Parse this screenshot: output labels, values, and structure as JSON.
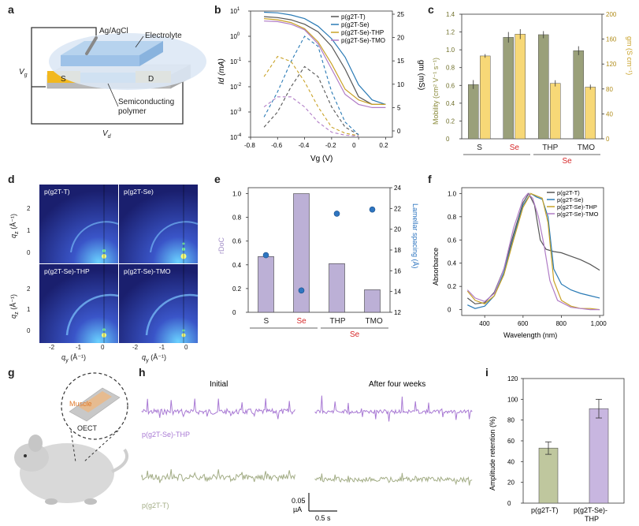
{
  "panel_labels": [
    "a",
    "b",
    "c",
    "d",
    "e",
    "f",
    "g",
    "h",
    "i"
  ],
  "panel_a": {
    "electrode": "Ag/AgCl",
    "electrolyte": "Electrolyte",
    "source": "S",
    "drain": "D",
    "semiconductor_line1": "Semiconducting",
    "semiconductor_line2": "polymer",
    "vg": "V",
    "vg_sub": "g",
    "vd": "V",
    "vd_sub": "d"
  },
  "chart_data": [
    {
      "id": "b",
      "type": "line",
      "xlabel": "Vg (V)",
      "ylabel_left": "Id (mA)",
      "ylabel_right": "gm (mS)",
      "x_ticks": [
        "-0.8",
        "-0.6",
        "-0.4",
        "-0.2",
        "0",
        "0.2"
      ],
      "y_left_ticks": [
        "10^-4",
        "10^-3",
        "10^-2",
        "10^-1",
        "10^0",
        "10^1"
      ],
      "y_right_ticks": [
        "0",
        "5",
        "10",
        "15",
        "20",
        "25"
      ],
      "xlim": [
        -0.8,
        0.25
      ],
      "legend": [
        "p(g2T-T)",
        "p(g2T-Se)",
        "p(g2T-Se)-THP",
        "p(g2T-Se)-TMO"
      ],
      "colors": [
        "#555555",
        "#2a7ab5",
        "#c9a227",
        "#b07cc6"
      ],
      "series_id": [
        {
          "name": "p(g2T-T)",
          "x": [
            -0.7,
            -0.6,
            -0.5,
            -0.4,
            -0.3,
            -0.2,
            -0.1,
            0.0,
            0.1,
            0.2
          ],
          "y": [
            6,
            5.5,
            4.5,
            3,
            1.5,
            0.4,
            0.05,
            0.004,
            0.002,
            0.002
          ]
        },
        {
          "name": "p(g2T-Se)",
          "x": [
            -0.7,
            -0.6,
            -0.5,
            -0.4,
            -0.3,
            -0.2,
            -0.1,
            0.0,
            0.1,
            0.2
          ],
          "y": [
            9,
            8.5,
            7,
            5,
            2.5,
            0.8,
            0.15,
            0.012,
            0.003,
            0.002
          ]
        },
        {
          "name": "p(g2T-Se)-THP",
          "x": [
            -0.7,
            -0.6,
            -0.5,
            -0.4,
            -0.3,
            -0.2,
            -0.1,
            0.0,
            0.1,
            0.2
          ],
          "y": [
            5,
            4.5,
            3.5,
            2,
            0.6,
            0.08,
            0.008,
            0.003,
            0.002,
            0.002
          ]
        },
        {
          "name": "p(g2T-Se)-TMO",
          "x": [
            -0.7,
            -0.6,
            -0.5,
            -0.4,
            -0.3,
            -0.2,
            -0.1,
            0.0,
            0.1,
            0.2
          ],
          "y": [
            4,
            3.8,
            3,
            1.8,
            0.5,
            0.05,
            0.005,
            0.002,
            0.0015,
            0.0015
          ]
        }
      ],
      "series_gm": [
        {
          "name": "p(g2T-T)",
          "x": [
            -0.7,
            -0.6,
            -0.5,
            -0.4,
            -0.3,
            -0.2,
            -0.1,
            0.0
          ],
          "y": [
            2,
            5,
            10,
            14,
            12,
            6,
            2,
            0.5
          ]
        },
        {
          "name": "p(g2T-Se)",
          "x": [
            -0.7,
            -0.6,
            -0.5,
            -0.4,
            -0.3,
            -0.2,
            -0.1,
            0.0
          ],
          "y": [
            4,
            9,
            15,
            20,
            18,
            9,
            3,
            0.5
          ]
        },
        {
          "name": "p(g2T-Se)-THP",
          "x": [
            -0.7,
            -0.6,
            -0.5,
            -0.4,
            -0.3,
            -0.2,
            -0.1,
            0.0
          ],
          "y": [
            12,
            16,
            15,
            11,
            6,
            2,
            0.8,
            0.3
          ]
        },
        {
          "name": "p(g2T-Se)-TMO",
          "x": [
            -0.7,
            -0.6,
            -0.5,
            -0.4,
            -0.3,
            -0.2,
            -0.1,
            0.0
          ],
          "y": [
            6,
            8,
            8,
            6,
            3,
            1,
            0.4,
            0.2
          ]
        }
      ]
    },
    {
      "id": "c",
      "type": "bar",
      "categories": [
        "S",
        "Se",
        "THP",
        "TMO"
      ],
      "category_colors": [
        "#222222",
        "#d62728",
        "#222222",
        "#222222"
      ],
      "group_label": "Se",
      "ylabel_left": "Mobility (cm² V⁻¹ s⁻¹)",
      "ylabel_right": "gm (S cm⁻¹)",
      "y_left_ticks": [
        "0",
        "0.2",
        "0.4",
        "0.6",
        "0.8",
        "1.0",
        "1.2",
        "1.4"
      ],
      "y_right_ticks": [
        "0",
        "40",
        "80",
        "120",
        "160",
        "200"
      ],
      "ylim_left": [
        0,
        1.4
      ],
      "ylim_right": [
        0,
        200
      ],
      "series": [
        {
          "name": "Mobility",
          "values": [
            0.61,
            1.14,
            1.17,
            0.99
          ],
          "errors": [
            0.05,
            0.06,
            0.04,
            0.05
          ],
          "color": "#9aa07a"
        },
        {
          "name": "gm",
          "values": [
            133,
            168,
            89,
            83
          ],
          "errors": [
            3,
            8,
            5,
            4
          ],
          "color": "#f7d877"
        }
      ]
    },
    {
      "id": "e",
      "type": "bar",
      "categories": [
        "S",
        "Se",
        "THP",
        "TMO"
      ],
      "category_colors": [
        "#222222",
        "#d62728",
        "#222222",
        "#222222"
      ],
      "group_label": "Se",
      "ylabel_left": "rDoC",
      "ylabel_right": "Lamellar spacing (Å)",
      "y_left_ticks": [
        "0",
        "0.2",
        "0.4",
        "0.6",
        "0.8",
        "1.0"
      ],
      "y_right_ticks": [
        "12",
        "14",
        "16",
        "18",
        "20",
        "22",
        "24"
      ],
      "ylim_left": [
        0,
        1.05
      ],
      "ylim_right": [
        12,
        24
      ],
      "series": [
        {
          "name": "rDoC",
          "values": [
            0.47,
            1.0,
            0.41,
            0.19
          ],
          "color": "#bcb0d6"
        },
        {
          "name": "Lamellar spacing",
          "values": [
            17.5,
            14.1,
            21.5,
            21.9
          ],
          "color": "#2e75c0"
        }
      ]
    },
    {
      "id": "f",
      "type": "line",
      "xlabel": "Wavelength (nm)",
      "ylabel": "Absorbance",
      "x_ticks": [
        "400",
        "600",
        "800",
        "1,000"
      ],
      "y_ticks": [
        "0",
        "0.2",
        "0.4",
        "0.6",
        "0.8",
        "1.0"
      ],
      "xlim": [
        280,
        1020
      ],
      "ylim": [
        -0.05,
        1.05
      ],
      "legend": [
        "p(g2T-T)",
        "p(g2T-Se)",
        "p(g2T-Se)-THP",
        "p(g2T-Se)-TMO"
      ],
      "colors": [
        "#555555",
        "#2a7ab5",
        "#c9a227",
        "#b07cc6"
      ],
      "series": [
        {
          "name": "p(g2T-T)",
          "x": [
            310,
            350,
            400,
            450,
            500,
            550,
            600,
            630,
            660,
            690,
            720,
            760,
            800,
            850,
            900,
            950,
            1000
          ],
          "y": [
            0.1,
            0.05,
            0.06,
            0.15,
            0.35,
            0.65,
            0.92,
            1.0,
            0.9,
            0.6,
            0.52,
            0.5,
            0.49,
            0.46,
            0.43,
            0.39,
            0.34
          ]
        },
        {
          "name": "p(g2T-Se)",
          "x": [
            310,
            350,
            400,
            450,
            500,
            550,
            600,
            640,
            670,
            700,
            730,
            760,
            800,
            850,
            900,
            950,
            1000
          ],
          "y": [
            0.04,
            0.01,
            0.03,
            0.12,
            0.32,
            0.62,
            0.9,
            1.0,
            0.97,
            0.95,
            0.8,
            0.35,
            0.22,
            0.17,
            0.14,
            0.12,
            0.1
          ]
        },
        {
          "name": "p(g2T-Se)-THP",
          "x": [
            310,
            350,
            400,
            450,
            500,
            550,
            600,
            640,
            670,
            700,
            730,
            760,
            800,
            850,
            900,
            950,
            1000
          ],
          "y": [
            0.16,
            0.08,
            0.05,
            0.12,
            0.3,
            0.6,
            0.88,
            1.0,
            0.98,
            0.96,
            0.75,
            0.25,
            0.08,
            0.03,
            0.01,
            0.01,
            0.0
          ]
        },
        {
          "name": "p(g2T-Se)-TMO",
          "x": [
            310,
            350,
            400,
            450,
            500,
            550,
            600,
            625,
            650,
            680,
            710,
            740,
            780,
            850,
            900,
            950,
            1000
          ],
          "y": [
            0.17,
            0.1,
            0.07,
            0.14,
            0.35,
            0.7,
            0.95,
            1.0,
            0.96,
            0.8,
            0.55,
            0.25,
            0.08,
            0.02,
            0.01,
            0.0,
            0.0
          ]
        }
      ]
    },
    {
      "id": "i",
      "type": "bar",
      "categories": [
        "p(g2T-T)",
        "p(g2T-Se)-THP"
      ],
      "ylabel": "Amplitude retention (%)",
      "y_ticks": [
        "0",
        "20",
        "40",
        "60",
        "80",
        "100",
        "120"
      ],
      "ylim": [
        0,
        120
      ],
      "values": [
        53,
        91
      ],
      "errors": [
        6,
        9
      ],
      "colors": [
        "#bfc79e",
        "#c8b6e0"
      ]
    }
  ],
  "panel_d": {
    "images": [
      {
        "label": "p(g2T-T)"
      },
      {
        "label": "p(g2T-Se)"
      },
      {
        "label": "p(g2T-Se)-THP"
      },
      {
        "label": "p(g2T-Se)-TMO"
      }
    ],
    "qz_label": "q",
    "qz_sub": "z",
    "q_unit": "(Å⁻¹)",
    "qy_label": "q",
    "qy_sub": "y",
    "y_ticks": [
      "2",
      "1",
      "0"
    ],
    "x_ticks": [
      "-2",
      "-1",
      "0"
    ]
  },
  "panel_g": {
    "muscle": "Muscle",
    "oect": "OECT"
  },
  "panel_h": {
    "initial": "Initial",
    "after": "After four weeks",
    "trace_top_label": "p(g2T-Se)-THP",
    "trace_bottom_label": "p(g2T-T)",
    "scale_current": "0.05",
    "scale_current_unit": "µA",
    "scale_time": "0.5 s",
    "top_color": "#a97ad4",
    "bottom_color": "#a3ad86"
  },
  "panel_i_labels": {
    "cat1": "p(g2T-T)",
    "cat2_line1": "p(g2T-Se)-",
    "cat2_line2": "THP"
  }
}
